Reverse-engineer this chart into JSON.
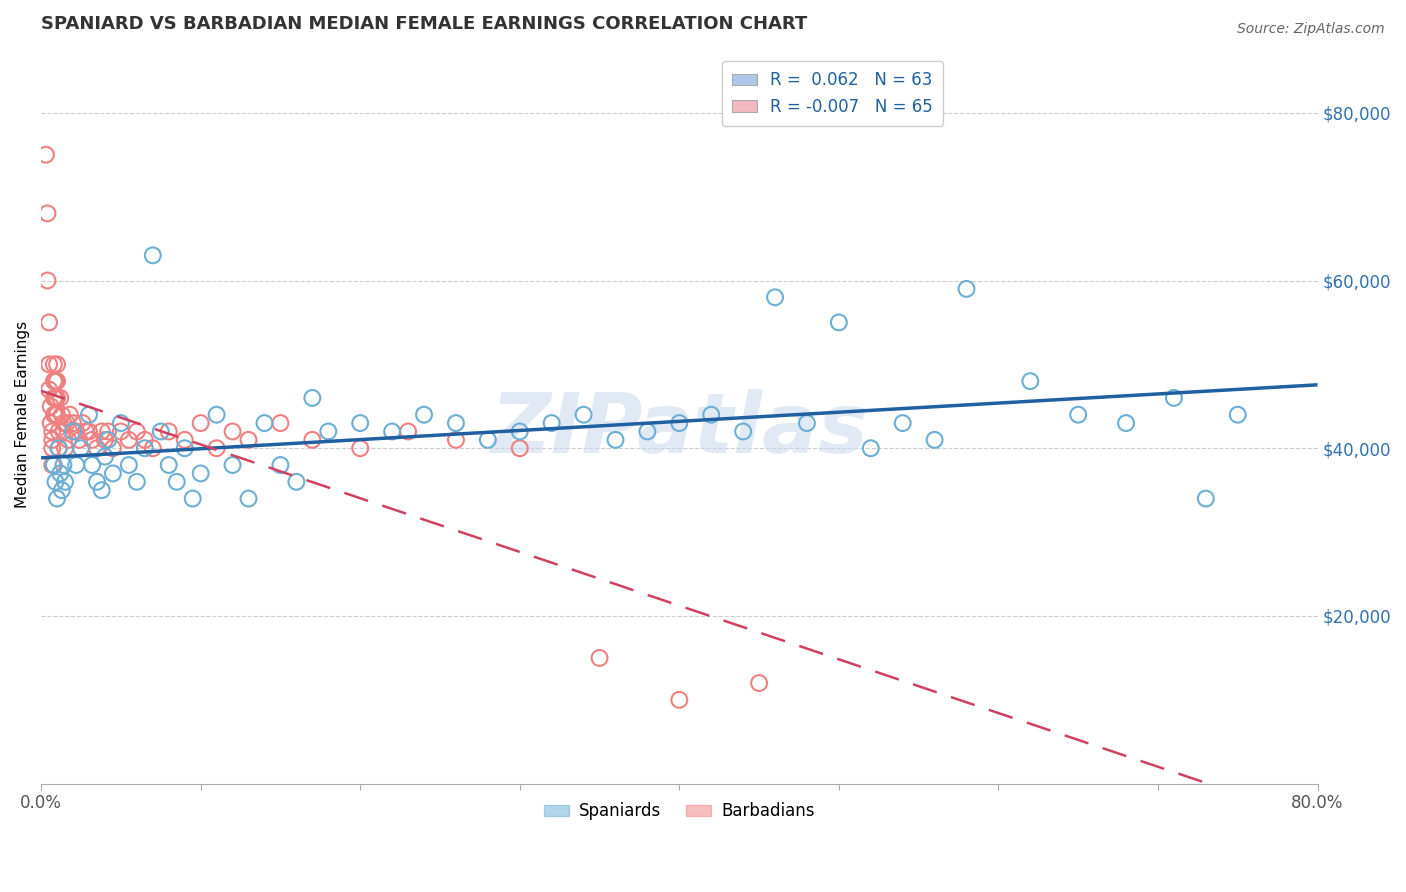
{
  "title": "SPANIARD VS BARBADIAN MEDIAN FEMALE EARNINGS CORRELATION CHART",
  "source": "Source: ZipAtlas.com",
  "ylabel": "Median Female Earnings",
  "y_ticks": [
    20000,
    40000,
    60000,
    80000
  ],
  "y_tick_labels": [
    "$20,000",
    "$40,000",
    "$60,000",
    "$80,000"
  ],
  "xlim": [
    0.0,
    0.8
  ],
  "ylim": [
    0,
    88000
  ],
  "legend_entries": [
    {
      "label": "R =  0.062   N = 63",
      "color": "#aec6e8"
    },
    {
      "label": "R = -0.007   N = 65",
      "color": "#f4b8c1"
    }
  ],
  "legend_label_spaniards": "Spaniards",
  "legend_label_barbadians": "Barbadians",
  "watermark": "ZIPatlas",
  "blue_color": "#6baed6",
  "pink_color": "#f08080",
  "blue_line_color": "#2060a0",
  "pink_line_color": "#d04060",
  "title_color": "#333333",
  "source_color": "#666666",
  "grid_color": "#cccccc",
  "axis_tick_color": "#555555",
  "right_tick_color": "#3070b0",
  "R_spaniards": 0.062,
  "N_spaniards": 63,
  "R_barbadians": -0.007,
  "N_barbadians": 65,
  "spaniards_x": [
    0.008,
    0.009,
    0.01,
    0.011,
    0.012,
    0.013,
    0.014,
    0.015,
    0.02,
    0.022,
    0.025,
    0.03,
    0.032,
    0.035,
    0.038,
    0.04,
    0.042,
    0.045,
    0.05,
    0.055,
    0.06,
    0.065,
    0.07,
    0.075,
    0.08,
    0.085,
    0.09,
    0.095,
    0.1,
    0.11,
    0.12,
    0.13,
    0.14,
    0.15,
    0.16,
    0.17,
    0.18,
    0.2,
    0.22,
    0.24,
    0.26,
    0.28,
    0.3,
    0.32,
    0.34,
    0.36,
    0.38,
    0.4,
    0.42,
    0.44,
    0.46,
    0.48,
    0.5,
    0.52,
    0.54,
    0.56,
    0.58,
    0.62,
    0.65,
    0.68,
    0.71,
    0.73,
    0.75
  ],
  "spaniards_y": [
    38000,
    36000,
    34000,
    40000,
    37000,
    35000,
    38000,
    36000,
    42000,
    38000,
    40000,
    44000,
    38000,
    36000,
    35000,
    39000,
    41000,
    37000,
    43000,
    38000,
    36000,
    40000,
    63000,
    42000,
    38000,
    36000,
    40000,
    34000,
    37000,
    44000,
    38000,
    34000,
    43000,
    38000,
    36000,
    46000,
    42000,
    43000,
    42000,
    44000,
    43000,
    41000,
    42000,
    43000,
    44000,
    41000,
    42000,
    43000,
    44000,
    42000,
    58000,
    43000,
    55000,
    40000,
    43000,
    41000,
    59000,
    48000,
    44000,
    43000,
    46000,
    34000,
    44000
  ],
  "barbadians_x": [
    0.003,
    0.004,
    0.004,
    0.005,
    0.005,
    0.005,
    0.006,
    0.006,
    0.007,
    0.007,
    0.007,
    0.007,
    0.008,
    0.008,
    0.008,
    0.008,
    0.009,
    0.009,
    0.009,
    0.01,
    0.01,
    0.01,
    0.01,
    0.011,
    0.011,
    0.012,
    0.013,
    0.014,
    0.014,
    0.015,
    0.016,
    0.017,
    0.018,
    0.02,
    0.022,
    0.024,
    0.026,
    0.028,
    0.03,
    0.032,
    0.035,
    0.038,
    0.04,
    0.042,
    0.045,
    0.05,
    0.055,
    0.06,
    0.065,
    0.07,
    0.08,
    0.09,
    0.1,
    0.11,
    0.12,
    0.13,
    0.15,
    0.17,
    0.2,
    0.23,
    0.26,
    0.3,
    0.35,
    0.4,
    0.45
  ],
  "barbadians_y": [
    75000,
    68000,
    60000,
    55000,
    50000,
    47000,
    45000,
    43000,
    42000,
    41000,
    40000,
    38000,
    50000,
    48000,
    46000,
    44000,
    48000,
    46000,
    44000,
    50000,
    48000,
    46000,
    44000,
    42000,
    40000,
    46000,
    44000,
    43000,
    42000,
    40000,
    43000,
    41000,
    44000,
    43000,
    42000,
    41000,
    43000,
    42000,
    42000,
    41000,
    40000,
    42000,
    41000,
    42000,
    40000,
    42000,
    41000,
    42000,
    41000,
    40000,
    42000,
    41000,
    43000,
    40000,
    42000,
    41000,
    43000,
    41000,
    40000,
    42000,
    41000,
    40000,
    15000,
    10000,
    12000
  ]
}
